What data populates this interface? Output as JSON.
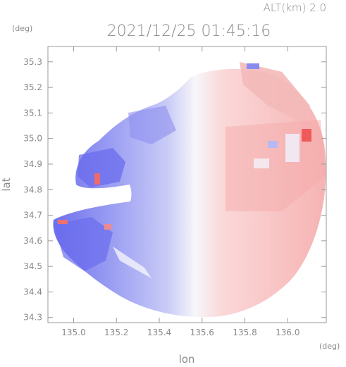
{
  "header": {
    "alt_label": "ALT(km) 2.0",
    "timestamp": "2021/12/25 01:45:16"
  },
  "axes": {
    "y_unit": "(deg)",
    "x_unit": "(deg)",
    "ylabel": "lat",
    "xlabel": "lon",
    "x_ticks": [
      "135.0",
      "135.2",
      "135.4",
      "135.6",
      "135.8",
      "136.0"
    ],
    "y_ticks": [
      "35.3",
      "35.2",
      "35.1",
      "35.0",
      "34.9",
      "34.8",
      "34.7",
      "34.6",
      "34.5",
      "34.4",
      "34.3"
    ],
    "xlim": [
      134.88,
      136.18
    ],
    "ylim": [
      34.28,
      35.36
    ]
  },
  "colors": {
    "approaching": "#7c7cf0",
    "receding": "#f29a9a",
    "neutral": "#f4f4f8",
    "frame": "#9a9a9a"
  }
}
